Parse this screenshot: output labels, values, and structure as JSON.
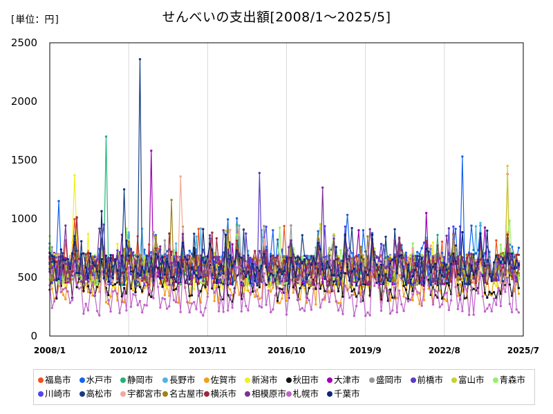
{
  "header": {
    "unit_label": "[単位：円]",
    "title": "せんべいの支出額[2008/1～2025/5]"
  },
  "chart_data": {
    "type": "line",
    "title": "せんべいの支出額[2008/1～2025/5]",
    "unit": "[単位：円]",
    "xlabel": "",
    "ylabel": "",
    "x_tick_labels": [
      "2008/1",
      "2010/12",
      "2013/11",
      "2016/10",
      "2019/9",
      "2022/8",
      "2025/7"
    ],
    "x_range": [
      "2008/1",
      "2025/7"
    ],
    "ylim": [
      0,
      2500
    ],
    "y_ticks": [
      0,
      500,
      1000,
      1500,
      2000,
      2500
    ],
    "grid": "vertical",
    "legend_position": "bottom",
    "series": [
      {
        "name": "福島市",
        "color": "#f0501e",
        "typical": 560,
        "peaks": [
          [
            "2024/12",
            1380
          ]
        ]
      },
      {
        "name": "水戸市",
        "color": "#1464f0",
        "typical": 620,
        "peaks": [
          [
            "2008/5",
            1150
          ],
          [
            "2023/4",
            1530
          ]
        ]
      },
      {
        "name": "静岡市",
        "color": "#1eb478",
        "typical": 560,
        "peaks": [
          [
            "2010/2",
            1700
          ]
        ]
      },
      {
        "name": "長野市",
        "color": "#50b4e6",
        "typical": 560,
        "peaks": []
      },
      {
        "name": "佐賀市",
        "color": "#f0a01e",
        "typical": 400,
        "peaks": []
      },
      {
        "name": "新潟市",
        "color": "#f0f01e",
        "typical": 520,
        "peaks": [
          [
            "2008/12",
            1370
          ]
        ]
      },
      {
        "name": "秋田市",
        "color": "#141414",
        "typical": 420,
        "peaks": []
      },
      {
        "name": "大津市",
        "color": "#a000b4",
        "typical": 560,
        "peaks": [
          [
            "2011/10",
            1580
          ]
        ]
      },
      {
        "name": "盛岡市",
        "color": "#969696",
        "typical": 560,
        "peaks": []
      },
      {
        "name": "前橋市",
        "color": "#5a3cc8",
        "typical": 560,
        "peaks": [
          [
            "2015/10",
            1390
          ]
        ]
      },
      {
        "name": "富山市",
        "color": "#c8d232",
        "typical": 560,
        "peaks": [
          [
            "2024/12",
            1450
          ]
        ]
      },
      {
        "name": "青森市",
        "color": "#96f064",
        "typical": 560,
        "peaks": []
      },
      {
        "name": "川崎市",
        "color": "#5046f0",
        "typical": 560,
        "peaks": []
      },
      {
        "name": "高松市",
        "color": "#143c82",
        "typical": 560,
        "peaks": [
          [
            "2011/5",
            2360
          ],
          [
            "2010/10",
            1250
          ]
        ]
      },
      {
        "name": "宇都宮市",
        "color": "#f0aa96",
        "typical": 560,
        "peaks": [
          [
            "2012/11",
            1360
          ]
        ]
      },
      {
        "name": "名古屋市",
        "color": "#a08214",
        "typical": 560,
        "peaks": [
          [
            "2012/7",
            1160
          ]
        ]
      },
      {
        "name": "横浜市",
        "color": "#a0283c",
        "typical": 560,
        "peaks": []
      },
      {
        "name": "相模原市",
        "color": "#7a3296",
        "typical": 560,
        "peaks": [
          [
            "2018/2",
            1265
          ]
        ]
      },
      {
        "name": "札幌市",
        "color": "#be64c8",
        "typical": 300,
        "peaks": []
      },
      {
        "name": "千葉市",
        "color": "#0a2878",
        "typical": 560,
        "peaks": []
      }
    ]
  }
}
